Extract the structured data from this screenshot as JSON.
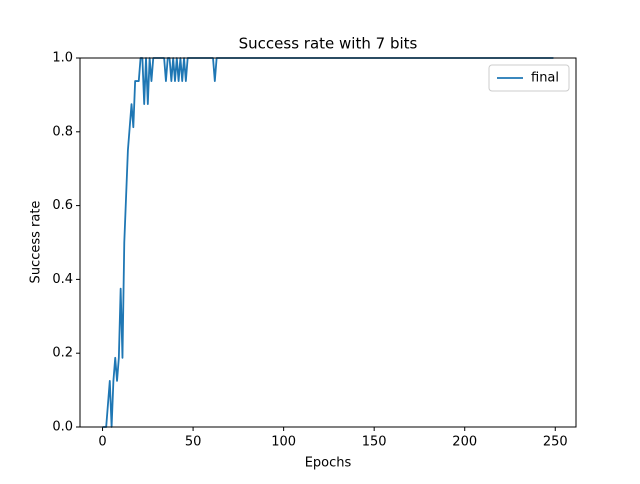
{
  "chart_data": {
    "type": "line",
    "title": "Success rate with 7 bits",
    "xlabel": "Epochs",
    "ylabel": "Success rate",
    "x": [
      0,
      1,
      2,
      3,
      4,
      5,
      6,
      7,
      8,
      9,
      10,
      11,
      12,
      13,
      14,
      15,
      16,
      17,
      18,
      19,
      20,
      21,
      22,
      23,
      24,
      25,
      26,
      27,
      28,
      29,
      30,
      31,
      32,
      33,
      34,
      35,
      36,
      37,
      38,
      39,
      40,
      41,
      42,
      43,
      44,
      45,
      46,
      47,
      48,
      49,
      50,
      51,
      52,
      53,
      54,
      55,
      56,
      57,
      58,
      59,
      60,
      61,
      62,
      63,
      64,
      65,
      66,
      67,
      68,
      69,
      70,
      71,
      72,
      73,
      74,
      75,
      76,
      77,
      78,
      79,
      80,
      81,
      82,
      83,
      84,
      85,
      86,
      87,
      88,
      89,
      90,
      91,
      92,
      93,
      94,
      95,
      96,
      97,
      98,
      99,
      100,
      101,
      102,
      103,
      104,
      105,
      106,
      107,
      108,
      109,
      110,
      111,
      112,
      113,
      114,
      115,
      116,
      117,
      118,
      119,
      120,
      121,
      122,
      123,
      124,
      125,
      126,
      127,
      128,
      129,
      130,
      131,
      132,
      133,
      134,
      135,
      136,
      137,
      138,
      139,
      140,
      141,
      142,
      143,
      144,
      145,
      146,
      147,
      148,
      149,
      150,
      151,
      152,
      153,
      154,
      155,
      156,
      157,
      158,
      159,
      160,
      161,
      162,
      163,
      164,
      165,
      166,
      167,
      168,
      169,
      170,
      171,
      172,
      173,
      174,
      175,
      176,
      177,
      178,
      179,
      180,
      181,
      182,
      183,
      184,
      185,
      186,
      187,
      188,
      189,
      190,
      191,
      192,
      193,
      194,
      195,
      196,
      197,
      198,
      199,
      200,
      201,
      202,
      203,
      204,
      205,
      206,
      207,
      208,
      209,
      210,
      211,
      212,
      213,
      214,
      215,
      216,
      217,
      218,
      219,
      220,
      221,
      222,
      223,
      224,
      225,
      226,
      227,
      228,
      229,
      230,
      231,
      232,
      233,
      234,
      235,
      236,
      237,
      238,
      239,
      240,
      241,
      242,
      243,
      244,
      245,
      246,
      247,
      248,
      249
    ],
    "series": [
      {
        "name": "final",
        "color": "#1f77b4",
        "values": [
          0,
          0,
          0,
          0.0625,
          0.125,
          0,
          0.125,
          0.1875,
          0.125,
          0.1875,
          0.375,
          0.1875,
          0.5,
          0.625,
          0.75,
          0.8125,
          0.875,
          0.8125,
          0.9375,
          0.9375,
          0.9375,
          1,
          1,
          0.875,
          1,
          0.875,
          1,
          0.9375,
          1,
          1,
          1,
          1,
          1,
          1,
          1,
          0.9375,
          1,
          1,
          0.9375,
          1,
          0.9375,
          1,
          0.9375,
          1,
          0.9375,
          1,
          0.9375,
          1,
          1,
          1,
          1,
          1,
          1,
          1,
          1,
          1,
          1,
          1,
          1,
          1,
          1,
          1,
          0.9375,
          1,
          1,
          1,
          1,
          1,
          1,
          1,
          1,
          1,
          1,
          1,
          1,
          1,
          1,
          1,
          1,
          1,
          1,
          1,
          1,
          1,
          1,
          1,
          1,
          1,
          1,
          1,
          1,
          1,
          1,
          1,
          1,
          1,
          1,
          1,
          1,
          1,
          1,
          1,
          1,
          1,
          1,
          1,
          1,
          1,
          1,
          1,
          1,
          1,
          1,
          1,
          1,
          1,
          1,
          1,
          1,
          1,
          1,
          1,
          1,
          1,
          1,
          1,
          1,
          1,
          1,
          1,
          1,
          1,
          1,
          1,
          1,
          1,
          1,
          1,
          1,
          1,
          1,
          1,
          1,
          1,
          1,
          1,
          1,
          1,
          1,
          1,
          1,
          1,
          1,
          1,
          1,
          1,
          1,
          1,
          1,
          1,
          1,
          1,
          1,
          1,
          1,
          1,
          1,
          1,
          1,
          1,
          1,
          1,
          1,
          1,
          1,
          1,
          1,
          1,
          1,
          1,
          1,
          1,
          1,
          1,
          1,
          1,
          1,
          1,
          1,
          1,
          1,
          1,
          1,
          1,
          1,
          1,
          1,
          1,
          1,
          1,
          1,
          1,
          1,
          1,
          1,
          1,
          1,
          1,
          1,
          1,
          1,
          1,
          1,
          1,
          1,
          1,
          1,
          1,
          1,
          1,
          1,
          1,
          1,
          1,
          1,
          1,
          1,
          1,
          1,
          1,
          1,
          1,
          1,
          1,
          1,
          1,
          1,
          1,
          1,
          1,
          1,
          1,
          1,
          1,
          1,
          1,
          1,
          1,
          1,
          1
        ]
      }
    ],
    "xlim": [
      -12.45,
      261.45
    ],
    "xticks": [
      0,
      50,
      100,
      150,
      200,
      250
    ],
    "ylim": [
      0,
      1
    ],
    "yticks": [
      {
        "value": 0,
        "label": "0.0"
      },
      0.2,
      0.4,
      0.6,
      0.8,
      {
        "value": 1,
        "label": "1.0"
      }
    ],
    "legend": "upper right"
  }
}
